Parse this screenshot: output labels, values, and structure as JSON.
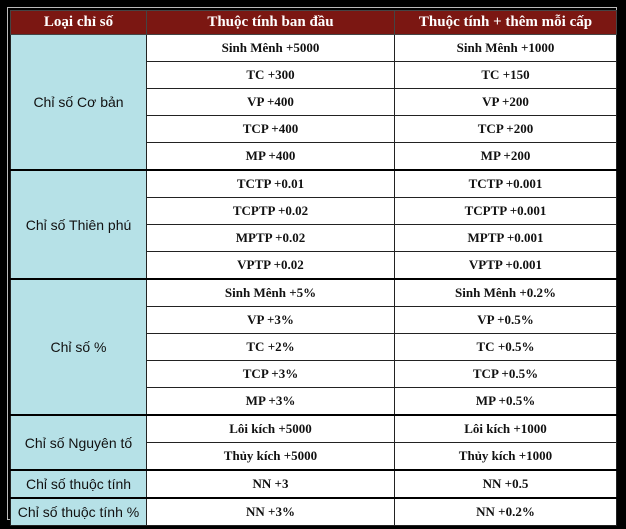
{
  "headers": [
    "Loại chỉ số",
    "Thuộc tính ban đầu",
    "Thuộc tính + thêm mỗi cấp"
  ],
  "groups": [
    {
      "category": "Chỉ số Cơ bản",
      "rows": [
        [
          "Sinh Mênh +5000",
          "Sinh Mênh +1000"
        ],
        [
          "TC +300",
          "TC +150"
        ],
        [
          "VP +400",
          "VP +200"
        ],
        [
          "TCP +400",
          "TCP +200"
        ],
        [
          "MP +400",
          "MP +200"
        ]
      ]
    },
    {
      "category": "Chỉ số Thiên phú",
      "rows": [
        [
          "TCTP +0.01",
          "TCTP +0.001"
        ],
        [
          "TCPTP +0.02",
          "TCPTP +0.001"
        ],
        [
          "MPTP +0.02",
          "MPTP +0.001"
        ],
        [
          "VPTP +0.02",
          "VPTP +0.001"
        ]
      ]
    },
    {
      "category": "Chỉ số %",
      "rows": [
        [
          "Sinh Mênh +5%",
          "Sinh Mênh +0.2%"
        ],
        [
          "VP +3%",
          "VP +0.5%"
        ],
        [
          "TC +2%",
          "TC +0.5%"
        ],
        [
          "TCP +3%",
          "TCP +0.5%"
        ],
        [
          "MP +3%",
          "MP +0.5%"
        ]
      ]
    },
    {
      "category": "Chỉ số Nguyên tố",
      "rows": [
        [
          "Lôi kích +5000",
          "Lôi kích +1000"
        ],
        [
          "Thủy kích +5000",
          "Thủy kích +1000"
        ]
      ]
    },
    {
      "category": "Chỉ số thuộc tính",
      "rows": [
        [
          "NN +3",
          "NN +0.5"
        ]
      ]
    },
    {
      "category": "Chỉ số thuộc tính %",
      "rows": [
        [
          "NN +3%",
          "NN +0.2%"
        ]
      ]
    }
  ]
}
